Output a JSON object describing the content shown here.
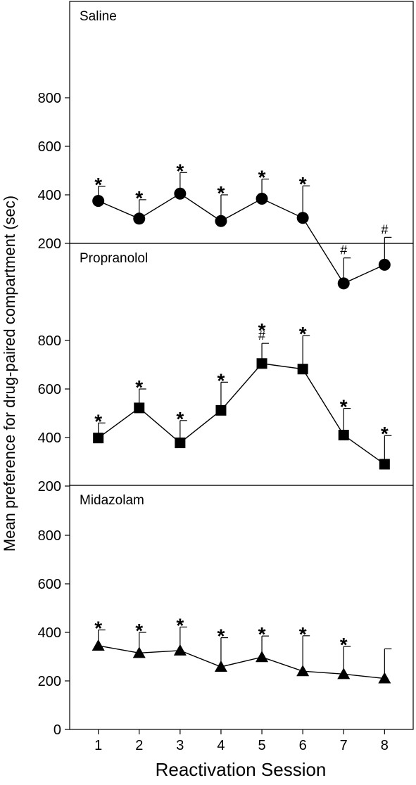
{
  "chart_data": {
    "type": "line",
    "ylabel": "Mean preference for drug-paired compartment (sec)",
    "xlabel": "Reactivation Session",
    "x": [
      1,
      2,
      3,
      4,
      5,
      6,
      7,
      8
    ],
    "x_ticks": [
      "1",
      "2",
      "3",
      "4",
      "5",
      "6",
      "7",
      "8"
    ],
    "xlim": [
      0.3,
      8.7
    ],
    "grid": false,
    "legend": "none",
    "panels": [
      {
        "label": "Saline",
        "marker": "circle",
        "ylim": [
          0,
          1000
        ],
        "y_ticks": [
          "200",
          "400",
          "600",
          "800"
        ],
        "values": [
          375,
          302,
          405,
          292,
          384,
          305,
          35,
          112
        ],
        "error_upper": [
          435,
          380,
          492,
          400,
          465,
          437,
          140,
          225
        ],
        "annotations": [
          {
            "x": 1,
            "star": "*",
            "hash": ""
          },
          {
            "x": 2,
            "star": "*",
            "hash": ""
          },
          {
            "x": 3,
            "star": "*",
            "hash": ""
          },
          {
            "x": 4,
            "star": "*",
            "hash": ""
          },
          {
            "x": 5,
            "star": "*",
            "hash": ""
          },
          {
            "x": 6,
            "star": "*",
            "hash": ""
          },
          {
            "x": 7,
            "star": "",
            "hash": "#"
          },
          {
            "x": 8,
            "star": "",
            "hash": "#"
          }
        ]
      },
      {
        "label": "Propranolol",
        "marker": "square",
        "ylim": [
          0,
          1000
        ],
        "y_ticks": [
          "200",
          "400",
          "600",
          "800"
        ],
        "values": [
          398,
          522,
          378,
          512,
          705,
          682,
          410,
          290
        ],
        "error_upper": [
          460,
          600,
          470,
          628,
          788,
          820,
          520,
          408
        ],
        "annotations": [
          {
            "x": 1,
            "star": "*",
            "hash": ""
          },
          {
            "x": 2,
            "star": "*",
            "hash": ""
          },
          {
            "x": 3,
            "star": "*",
            "hash": ""
          },
          {
            "x": 4,
            "star": "*",
            "hash": ""
          },
          {
            "x": 5,
            "star": "*",
            "hash": "#"
          },
          {
            "x": 6,
            "star": "*",
            "hash": ""
          },
          {
            "x": 7,
            "star": "*",
            "hash": ""
          },
          {
            "x": 8,
            "star": "*",
            "hash": ""
          }
        ]
      },
      {
        "label": "Midazolam",
        "marker": "triangle",
        "ylim": [
          0,
          1000
        ],
        "y_ticks": [
          "0",
          "200",
          "400",
          "600",
          "800"
        ],
        "values": [
          345,
          315,
          325,
          258,
          298,
          240,
          228,
          210
        ],
        "error_upper": [
          410,
          400,
          422,
          378,
          385,
          386,
          342,
          332
        ],
        "annotations": [
          {
            "x": 1,
            "star": "*",
            "hash": ""
          },
          {
            "x": 2,
            "star": "*",
            "hash": ""
          },
          {
            "x": 3,
            "star": "*",
            "hash": ""
          },
          {
            "x": 4,
            "star": "*",
            "hash": ""
          },
          {
            "x": 5,
            "star": "*",
            "hash": ""
          },
          {
            "x": 6,
            "star": "*",
            "hash": ""
          },
          {
            "x": 7,
            "star": "*",
            "hash": ""
          },
          {
            "x": 8,
            "star": "",
            "hash": ""
          }
        ]
      }
    ]
  }
}
